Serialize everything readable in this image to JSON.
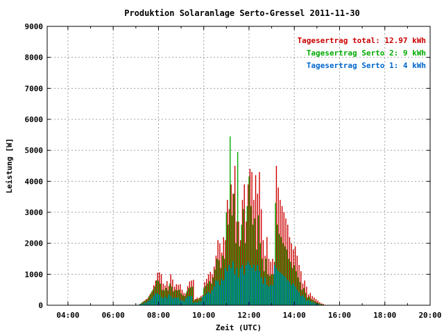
{
  "chart_data": {
    "type": "bar",
    "title": "Produktion Solaranlage Serto-Gressel 2011-11-30",
    "xlabel": "Zeit (UTC)",
    "ylabel": "Leistung [W]",
    "xlim": [
      "03:05",
      "20:00"
    ],
    "ylim": [
      0,
      9000
    ],
    "x_ticks": [
      "04:00",
      "06:00",
      "08:00",
      "10:00",
      "12:00",
      "14:00",
      "16:00",
      "18:00",
      "20:00"
    ],
    "y_ticks": [
      0,
      1000,
      2000,
      3000,
      4000,
      5000,
      6000,
      7000,
      8000,
      9000
    ],
    "grid": true,
    "legend_position": "top-right",
    "legend": [
      {
        "text": "Tagesertrag total: 12.97 kWh",
        "color": "#cc0000"
      },
      {
        "text": "Tagesertrag Serto 2: 9 kWh",
        "color": "#00aa00"
      },
      {
        "text": "Tagesertrag Serto 1: 4 kWh",
        "color": "#0066cc"
      }
    ],
    "series_colors": {
      "total": "#cc0000",
      "serto2": "#00aa00",
      "serto1": "#0066cc"
    },
    "x": [
      "07:10",
      "07:15",
      "07:20",
      "07:25",
      "07:30",
      "07:35",
      "07:40",
      "07:45",
      "07:50",
      "07:55",
      "08:00",
      "08:05",
      "08:10",
      "08:15",
      "08:20",
      "08:25",
      "08:30",
      "08:35",
      "08:40",
      "08:45",
      "08:50",
      "08:55",
      "09:00",
      "09:05",
      "09:10",
      "09:15",
      "09:20",
      "09:25",
      "09:30",
      "09:35",
      "09:40",
      "09:45",
      "09:50",
      "09:55",
      "10:00",
      "10:05",
      "10:10",
      "10:15",
      "10:20",
      "10:25",
      "10:30",
      "10:35",
      "10:40",
      "10:45",
      "10:50",
      "10:55",
      "11:00",
      "11:05",
      "11:10",
      "11:15",
      "11:20",
      "11:25",
      "11:30",
      "11:35",
      "11:40",
      "11:45",
      "11:50",
      "11:55",
      "12:00",
      "12:05",
      "12:10",
      "12:15",
      "12:20",
      "12:25",
      "12:30",
      "12:35",
      "12:40",
      "12:45",
      "12:50",
      "12:55",
      "13:00",
      "13:05",
      "13:10",
      "13:15",
      "13:20",
      "13:25",
      "13:30",
      "13:35",
      "13:40",
      "13:45",
      "13:50",
      "13:55",
      "14:00",
      "14:05",
      "14:10",
      "14:15",
      "14:20",
      "14:25",
      "14:30",
      "14:35",
      "14:40",
      "14:45",
      "14:50",
      "14:55",
      "15:00",
      "15:05",
      "15:10",
      "15:15"
    ],
    "series": [
      {
        "key": "total",
        "values": [
          50,
          100,
          150,
          200,
          250,
          350,
          450,
          650,
          800,
          1050,
          1060,
          1000,
          700,
          640,
          780,
          620,
          1000,
          830,
          600,
          680,
          660,
          680,
          500,
          400,
          380,
          620,
          770,
          800,
          820,
          200,
          250,
          240,
          300,
          330,
          750,
          850,
          1000,
          1080,
          1000,
          1250,
          1600,
          2100,
          2000,
          1700,
          2200,
          2100,
          3400,
          3100,
          3900,
          3600,
          4500,
          2700,
          2700,
          2100,
          3400,
          3900,
          2700,
          3900,
          4400,
          4300,
          3400,
          4200,
          3600,
          4300,
          3100,
          2100,
          1600,
          2200,
          1500,
          1400,
          1500,
          1400,
          4500,
          3800,
          3400,
          3200,
          3000,
          2800,
          2600,
          2200,
          2000,
          1800,
          1900,
          1600,
          1300,
          1100,
          700,
          800,
          600,
          350,
          400,
          300,
          250,
          200,
          150,
          100,
          60,
          40
        ]
      },
      {
        "key": "serto2",
        "values": [
          40,
          80,
          120,
          150,
          200,
          300,
          400,
          500,
          600,
          800,
          780,
          700,
          500,
          480,
          560,
          480,
          700,
          600,
          450,
          500,
          480,
          500,
          380,
          320,
          300,
          450,
          550,
          580,
          600,
          160,
          200,
          190,
          240,
          260,
          550,
          620,
          700,
          780,
          700,
          900,
          1150,
          1500,
          1450,
          1200,
          1600,
          1500,
          3000,
          2600,
          5450,
          2900,
          3600,
          2000,
          4950,
          1900,
          2600,
          3100,
          2000,
          3200,
          4150,
          3200,
          2600,
          2800,
          1800,
          2900,
          2000,
          1500,
          1100,
          1500,
          1000,
          950,
          1000,
          1000,
          3300,
          2600,
          2300,
          2200,
          2000,
          1900,
          1800,
          1500,
          1400,
          1200,
          1300,
          1100,
          900,
          750,
          500,
          550,
          400,
          250,
          280,
          200,
          170,
          130,
          100,
          70,
          40,
          30
        ]
      },
      {
        "key": "serto1",
        "values": [
          15,
          30,
          50,
          70,
          90,
          130,
          170,
          220,
          300,
          380,
          380,
          340,
          260,
          230,
          280,
          230,
          340,
          300,
          220,
          240,
          240,
          250,
          180,
          150,
          140,
          220,
          280,
          290,
          300,
          80,
          100,
          90,
          120,
          130,
          280,
          320,
          380,
          420,
          380,
          480,
          600,
          800,
          780,
          650,
          850,
          800,
          1200,
          1100,
          1300,
          1200,
          1400,
          1000,
          1200,
          900,
          1200,
          1300,
          1000,
          1300,
          1400,
          1300,
          1200,
          1300,
          1100,
          1300,
          1100,
          900,
          700,
          900,
          650,
          600,
          650,
          650,
          1300,
          1200,
          1100,
          1050,
          1000,
          950,
          900,
          800,
          750,
          650,
          700,
          600,
          500,
          420,
          300,
          320,
          250,
          150,
          170,
          130,
          100,
          80,
          60,
          40,
          25,
          15
        ]
      }
    ]
  }
}
